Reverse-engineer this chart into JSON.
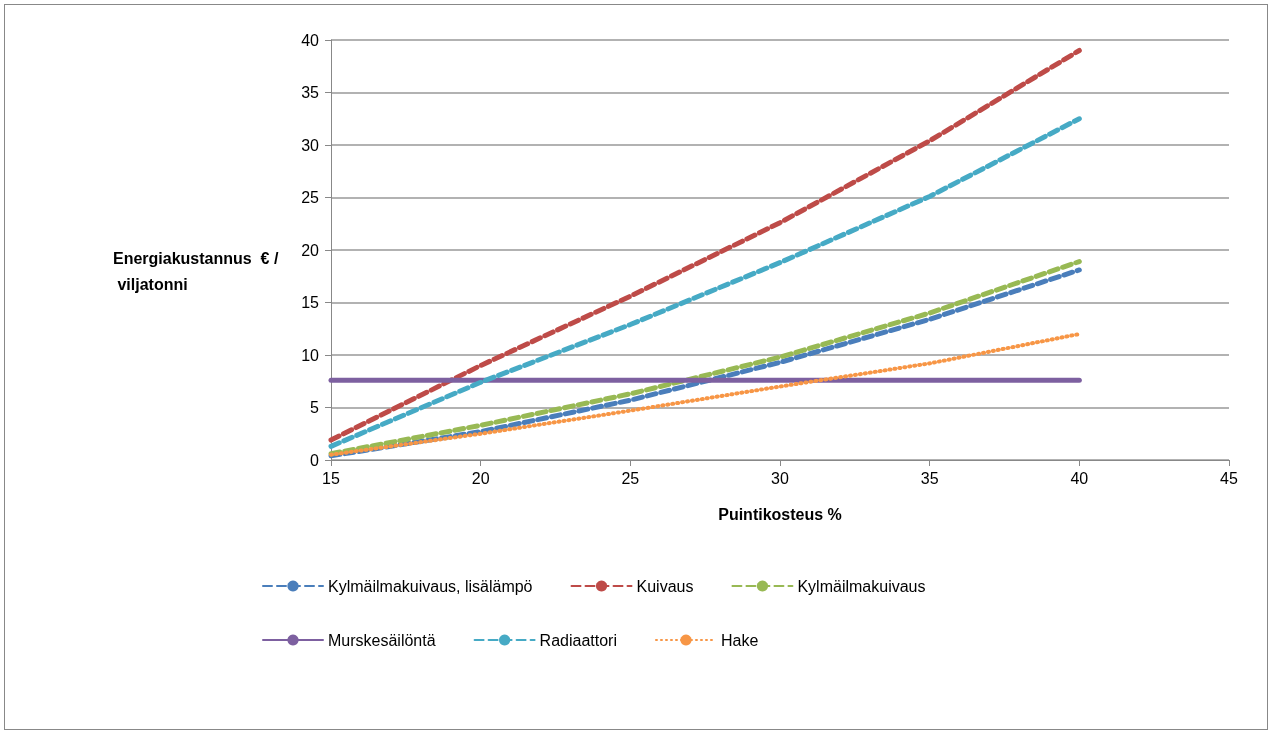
{
  "chart_data": {
    "type": "line",
    "xlabel": "Puintikosteus %",
    "ylabel": "Energiakustannus  € / viljatonni",
    "x": [
      15,
      20,
      25,
      30,
      35,
      40
    ],
    "series": [
      {
        "name": "Kylmäilmakuivaus, lisälämpö",
        "color": "#4a7ebb",
        "line_style": "dashed",
        "x": [
          15,
          17,
          20,
          25,
          30,
          35,
          40
        ],
        "values": [
          0.4,
          1.3,
          2.7,
          5.7,
          9.3,
          13.4,
          18.1
        ]
      },
      {
        "name": "Kuivaus",
        "color": "#be4b48",
        "line_style": "dashed",
        "values": [
          1.9,
          9.0,
          15.6,
          22.6,
          30.4,
          39.0
        ]
      },
      {
        "name": "Kylmäilmakuivaus",
        "color": "#98b954",
        "line_style": "dashed",
        "values": [
          0.6,
          3.3,
          6.3,
          9.8,
          14.0,
          18.9
        ]
      },
      {
        "name": "Murskesäilöntä",
        "color": "#7d60a0",
        "line_style": "solid",
        "values": [
          7.6,
          7.6,
          7.6,
          7.6,
          7.6,
          7.6
        ]
      },
      {
        "name": "Radiaattori",
        "color": "#46aac5",
        "line_style": "dashed",
        "values": [
          1.3,
          7.4,
          12.9,
          18.8,
          25.1,
          32.5
        ]
      },
      {
        "name": "Hake",
        "color": "#f79646",
        "line_style": "dotted",
        "values": [
          0.5,
          2.5,
          4.7,
          7.0,
          9.2,
          12.0
        ]
      }
    ],
    "xlim": [
      15,
      45
    ],
    "xticks": [
      15,
      20,
      25,
      30,
      35,
      40,
      45
    ],
    "ylim": [
      0,
      40
    ],
    "yticks": [
      0,
      5,
      10,
      15,
      20,
      25,
      30,
      35,
      40
    ],
    "grid": "y",
    "legend": "bottom",
    "marker": "none"
  }
}
